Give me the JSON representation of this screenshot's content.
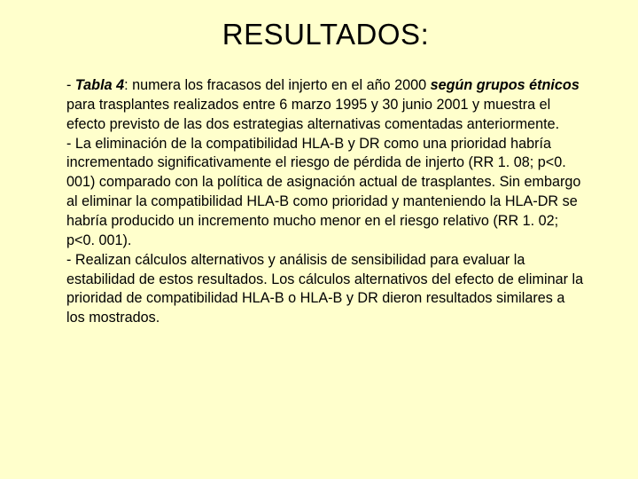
{
  "title": "RESULTADOS:",
  "p1": {
    "lead": "- ",
    "bi1": "Tabla 4",
    "t1": ": numera los fracasos del injerto en el año 2000 ",
    "bi2": "según grupos étnicos",
    "t2": " para trasplantes realizados entre 6 marzo 1995 y 30 junio 2001 y muestra el efecto previsto de las dos estrategias alternativas comentadas anteriormente."
  },
  "p2": "- La eliminación de la compatibilidad HLA-B y DR como una prioridad habría incrementado significativamente el riesgo de pérdida de injerto (RR 1. 08; p<0. 001) comparado con la política de asignación actual de trasplantes. Sin embargo al eliminar la compatibilidad HLA-B como prioridad y manteniendo la HLA-DR se habría producido un incremento mucho menor en el riesgo relativo (RR 1. 02; p<0. 001).",
  "p3": "- Realizan cálculos alternativos y análisis de sensibilidad para evaluar la estabilidad de estos resultados. Los cálculos alternativos del efecto de eliminar la prioridad de compatibilidad HLA-B o HLA-B y DR dieron resultados similares a los mostrados.",
  "colors": {
    "background": "#ffffcc",
    "text": "#000000"
  },
  "fonts": {
    "title_size_pt": 33,
    "body_size_pt": 16,
    "family": "Verdana"
  }
}
